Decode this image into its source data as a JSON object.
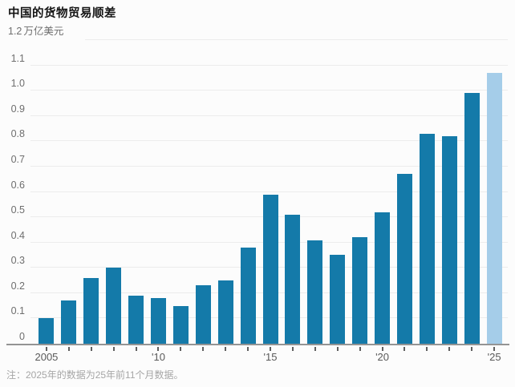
{
  "header": {
    "title": "中国的货物贸易顺差"
  },
  "y_axis": {
    "top_tick": "1.2",
    "unit": "万亿美元"
  },
  "footer": {
    "note": "注：2025年的数据为25年前11个月数据。"
  },
  "chart_data": {
    "type": "bar",
    "title": "中国的货物贸易顺差",
    "ylabel": "万亿美元",
    "categories": [
      2005,
      2006,
      2007,
      2008,
      2009,
      2010,
      2011,
      2012,
      2013,
      2014,
      2015,
      2016,
      2017,
      2018,
      2019,
      2020,
      2021,
      2022,
      2023,
      2024,
      2025
    ],
    "values": [
      0.1,
      0.17,
      0.26,
      0.3,
      0.19,
      0.18,
      0.15,
      0.23,
      0.25,
      0.38,
      0.59,
      0.51,
      0.41,
      0.35,
      0.42,
      0.52,
      0.67,
      0.83,
      0.82,
      0.99,
      1.07
    ],
    "highlight_index": 20,
    "bar_color": "#147aa9",
    "highlight_color": "#a5cde9",
    "ylim": [
      0,
      1.2
    ],
    "ytick_step": 0.1,
    "grid": "horizontal",
    "legend": "none",
    "xtick_labels": [
      {
        "index": 0,
        "label": "2005"
      },
      {
        "index": 5,
        "label": "'10"
      },
      {
        "index": 10,
        "label": "'15"
      },
      {
        "index": 15,
        "label": "'20"
      },
      {
        "index": 20,
        "label": "'25"
      }
    ],
    "note": "注：2025年的数据为25年前11个月数据。"
  }
}
